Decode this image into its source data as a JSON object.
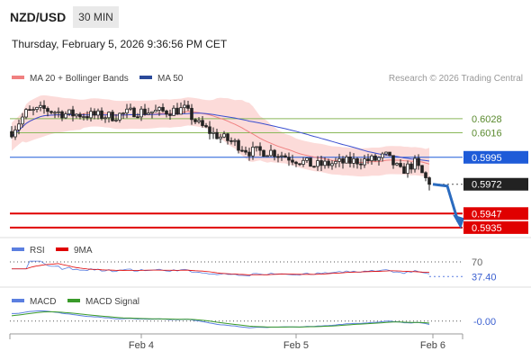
{
  "header": {
    "symbol": "NZD/USD",
    "timeframe": "30 MIN",
    "datetime": "Thursday, February 5, 2026 9:36:56 PM CET"
  },
  "legend": {
    "ma20_label": "MA 20 + Bollinger Bands",
    "ma50_label": "MA 50",
    "credit": "Research © 2026 Trading Central"
  },
  "colors": {
    "ma20": "#f08080",
    "bands_fill": "#fbd5d2",
    "ma50": "#3a4fd0",
    "up_candle": "#ffffff",
    "down_candle": "#222222",
    "green_level": "#8ab85a",
    "blue_level": "#1e5bd8",
    "red_level": "#e00000",
    "current_price": "#222222",
    "rsi": "#5b7fe0",
    "rsi_ma": "#e00000",
    "macd": "#5b7fe0",
    "macd_signal": "#3a9b2a",
    "arrow": "#2a6bbf"
  },
  "chart_data": [
    {
      "type": "candlestick",
      "panel": "price",
      "ylim": [
        0.5928,
        0.6054
      ],
      "x_range": [
        0,
        117
      ],
      "x_ticks": [
        {
          "x": 36,
          "label": "Feb 4"
        },
        {
          "x": 79,
          "label": "Feb 5"
        },
        {
          "x": 117,
          "label": "Feb 6"
        }
      ],
      "series": [
        {
          "name": "MA 20 + Bollinger Bands",
          "kind": "ma20"
        },
        {
          "name": "MA 50",
          "kind": "ma50"
        }
      ],
      "levels": [
        {
          "value": 0.6028,
          "label": "0.6028",
          "style": "green"
        },
        {
          "value": 0.6016,
          "label": "0.6016",
          "style": "green"
        },
        {
          "value": 0.5995,
          "label": "0.5995",
          "style": "blue"
        },
        {
          "value": 0.5947,
          "label": "0.5947",
          "style": "red"
        },
        {
          "value": 0.5935,
          "label": "0.5935",
          "style": "red"
        }
      ],
      "current_price": {
        "value": 0.5972,
        "label": "0.5972"
      },
      "forecast_arrow": {
        "from": 0.5972,
        "to": 0.594
      }
    },
    {
      "type": "line",
      "panel": "rsi",
      "series_labels": [
        "RSI",
        "9MA"
      ],
      "ylim": [
        20,
        80
      ],
      "ref_level": {
        "value": 70,
        "label": "70"
      },
      "current_value": {
        "value": 37.4,
        "label": "37.40"
      }
    },
    {
      "type": "line",
      "panel": "macd",
      "series_labels": [
        "MACD",
        "MACD Signal"
      ],
      "ylim": [
        -0.0012,
        0.0018
      ],
      "zero_label": "-0.00"
    }
  ]
}
